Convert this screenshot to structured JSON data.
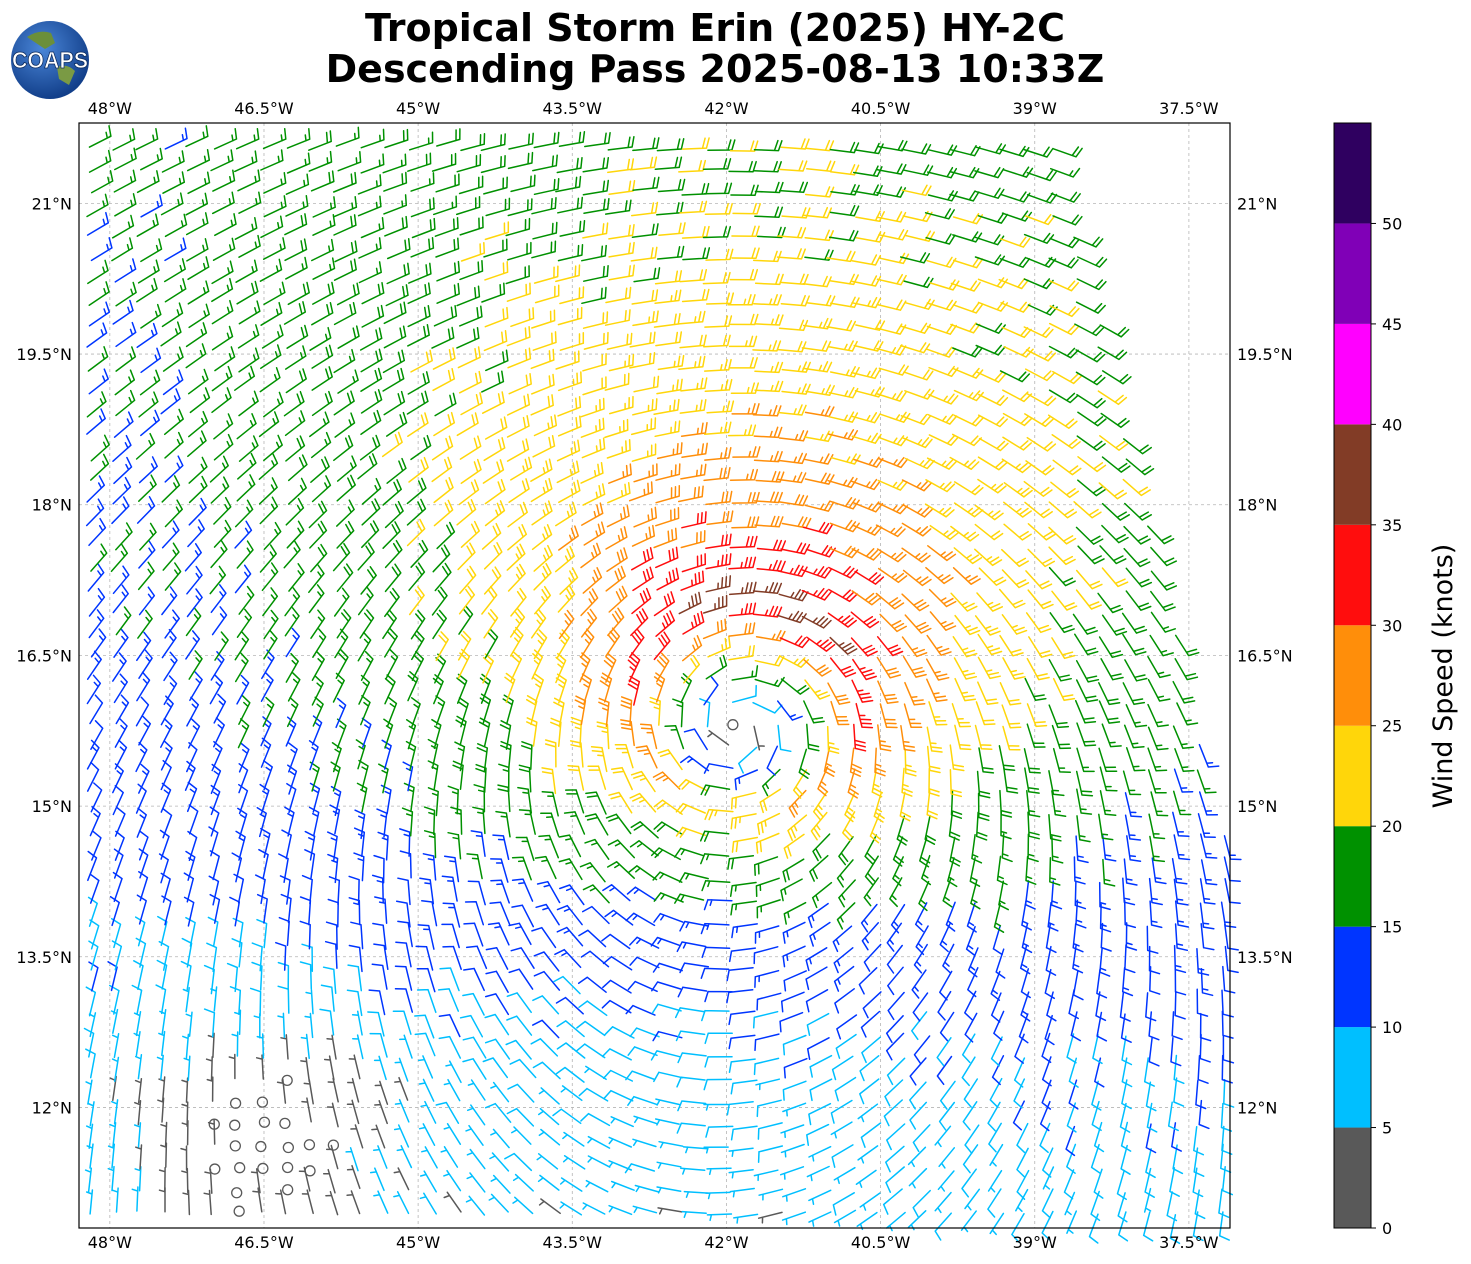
{
  "title": {
    "line1": "Tropical Storm Erin (2025) HY-2C",
    "line2": "Descending Pass 2025-08-13 10:33Z"
  },
  "logo": {
    "text": "COAPS",
    "icon": "globe-icon"
  },
  "map": {
    "lon_range": [
      -48.3,
      -37.1
    ],
    "lat_range": [
      10.8,
      21.8
    ],
    "lon_ticks": [
      {
        "value": -48,
        "label": "48°W"
      },
      {
        "value": -46.5,
        "label": "46.5°W"
      },
      {
        "value": -45,
        "label": "45°W"
      },
      {
        "value": -43.5,
        "label": "43.5°W"
      },
      {
        "value": -42,
        "label": "42°W"
      },
      {
        "value": -40.5,
        "label": "40.5°W"
      },
      {
        "value": -39,
        "label": "39°W"
      },
      {
        "value": -37.5,
        "label": "37.5°W"
      }
    ],
    "lat_ticks": [
      {
        "value": 21,
        "label": "21°N"
      },
      {
        "value": 19.5,
        "label": "19.5°N"
      },
      {
        "value": 18,
        "label": "18°N"
      },
      {
        "value": 16.5,
        "label": "16.5°N"
      },
      {
        "value": 15,
        "label": "15°N"
      },
      {
        "value": 13.5,
        "label": "13.5°N"
      },
      {
        "value": 12,
        "label": "12°N"
      }
    ],
    "storm_center": {
      "lon": -41.85,
      "lat": 16.0
    },
    "grid_lines": true
  },
  "colorbar": {
    "label": "Wind Speed (knots)",
    "tick_labels": [
      "0",
      "5",
      "10",
      "15",
      "20",
      "25",
      "30",
      "35",
      "40",
      "45",
      "50"
    ],
    "bins": [
      {
        "min": 0,
        "max": 5,
        "color": "#595959"
      },
      {
        "min": 5,
        "max": 10,
        "color": "#00bfff"
      },
      {
        "min": 10,
        "max": 15,
        "color": "#0035ff"
      },
      {
        "min": 15,
        "max": 20,
        "color": "#009100"
      },
      {
        "min": 20,
        "max": 25,
        "color": "#ffd60a"
      },
      {
        "min": 25,
        "max": 30,
        "color": "#ff8e0a"
      },
      {
        "min": 30,
        "max": 35,
        "color": "#ff0d0d"
      },
      {
        "min": 35,
        "max": 40,
        "color": "#823c26"
      },
      {
        "min": 40,
        "max": 45,
        "color": "#ff00ff"
      },
      {
        "min": 45,
        "max": 50,
        "color": "#8000b7"
      },
      {
        "min": 50,
        "max": 55,
        "color": "#2f0060"
      }
    ]
  }
}
